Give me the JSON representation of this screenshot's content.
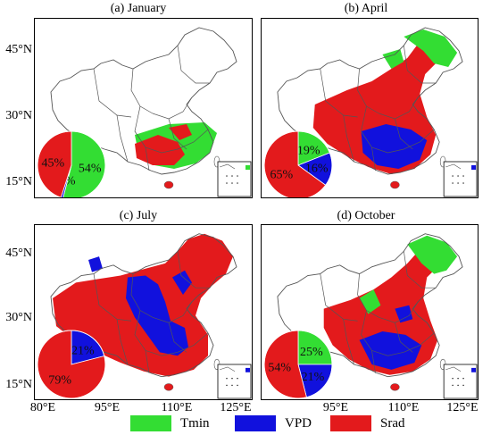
{
  "colors": {
    "Tmin": "#33dd33",
    "VPD": "#1111dd",
    "Srad": "#e31a1c",
    "border": "#555555"
  },
  "panels": [
    {
      "title": "(a)  January",
      "pie": [
        {
          "key": "Tmin",
          "value": 54,
          "label": "54%"
        },
        {
          "key": "VPD",
          "value": 1,
          "label": "1%"
        },
        {
          "key": "Srad",
          "value": 45,
          "label": "45%"
        }
      ]
    },
    {
      "title": "(b)  April",
      "pie": [
        {
          "key": "Tmin",
          "value": 19,
          "label": "19%"
        },
        {
          "key": "VPD",
          "value": 16,
          "label": "16%"
        },
        {
          "key": "Srad",
          "value": 65,
          "label": "65%"
        }
      ]
    },
    {
      "title": "(c)  July",
      "pie": [
        {
          "key": "Tmin",
          "value": 0,
          "label": ""
        },
        {
          "key": "VPD",
          "value": 21,
          "label": "21%"
        },
        {
          "key": "Srad",
          "value": 79,
          "label": "79%"
        }
      ]
    },
    {
      "title": "(d)  October",
      "pie": [
        {
          "key": "Tmin",
          "value": 25,
          "label": "25%"
        },
        {
          "key": "VPD",
          "value": 21,
          "label": "21%"
        },
        {
          "key": "Srad",
          "value": 54,
          "label": "54%"
        }
      ]
    }
  ],
  "y_axis": [
    "45°N",
    "30°N",
    "15°N"
  ],
  "x_axis": [
    "80°E",
    "95°E",
    "110°E",
    "125°E"
  ],
  "legend": [
    {
      "key": "Tmin",
      "label": "Tmin"
    },
    {
      "key": "VPD",
      "label": "VPD"
    },
    {
      "key": "Srad",
      "label": "Srad"
    }
  ]
}
